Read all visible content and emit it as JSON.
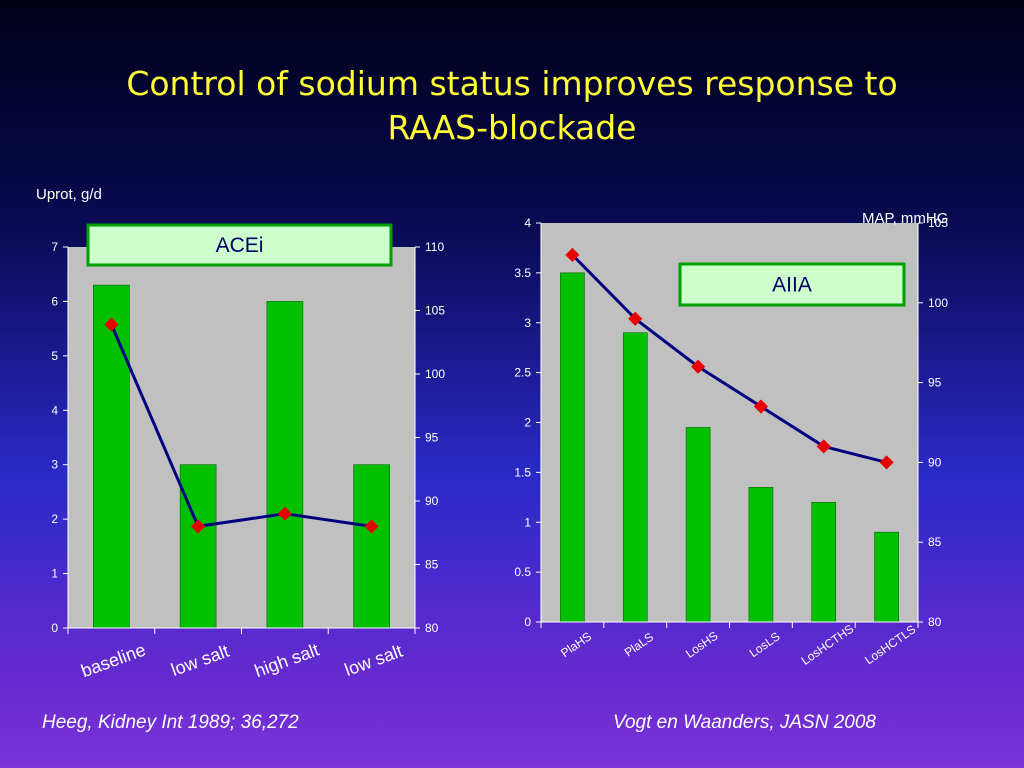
{
  "slide": {
    "title_line1": "Control of sodium status improves response to",
    "title_line2": "RAAS-blockade",
    "citation_left": "Heeg, Kidney Int 1989; 36,272",
    "citation_right": "Vogt en Waanders, JASN  2008"
  },
  "colors": {
    "bar": "#00c000",
    "line": "#000080",
    "marker": "#e80000",
    "plot_bg": "#c0c0c0",
    "label_box": "#ccffcc",
    "label_box_border": "#00a000",
    "title": "#ffff33"
  },
  "chart_data": [
    {
      "type": "bar",
      "label_box": "ACEi",
      "ylabel": "Uprot, g/d",
      "y2label": "",
      "categories": [
        "baseline",
        "low salt",
        "high salt",
        "low salt"
      ],
      "series": [
        {
          "type": "bar",
          "axis": "left",
          "values": [
            6.3,
            3.0,
            6.0,
            3.0
          ]
        },
        {
          "type": "line",
          "axis": "right",
          "values": [
            103.9,
            88.0,
            89.0,
            88.0
          ]
        }
      ],
      "ylim": [
        0,
        7
      ],
      "y_ticks": [
        "0",
        "1",
        "2",
        "3",
        "4",
        "5",
        "6",
        "7"
      ],
      "y2lim": [
        80,
        110
      ],
      "y2_ticks": [
        "80",
        "85",
        "90",
        "95",
        "100",
        "105",
        "110"
      ],
      "grid": false
    },
    {
      "type": "bar",
      "label_box": "AIIA",
      "ylabel": "",
      "y2label": "MAP, mmHG",
      "categories": [
        "PlaHS",
        "PlaLS",
        "LosHS",
        "LosLS",
        "LosHCTHS",
        "LosHCTLS"
      ],
      "series": [
        {
          "type": "bar",
          "axis": "left",
          "values": [
            3.5,
            2.9,
            1.95,
            1.35,
            1.2,
            0.9
          ]
        },
        {
          "type": "line",
          "axis": "right",
          "values": [
            103.0,
            99.0,
            96.0,
            93.5,
            91.0,
            90.0
          ]
        }
      ],
      "ylim": [
        0,
        4
      ],
      "y_ticks": [
        "0",
        "0.5",
        "1",
        "1.5",
        "2",
        "2.5",
        "3",
        "3.5",
        "4"
      ],
      "y2lim": [
        80,
        105
      ],
      "y2_ticks": [
        "80",
        "85",
        "90",
        "95",
        "100",
        "105"
      ],
      "grid": false
    }
  ]
}
